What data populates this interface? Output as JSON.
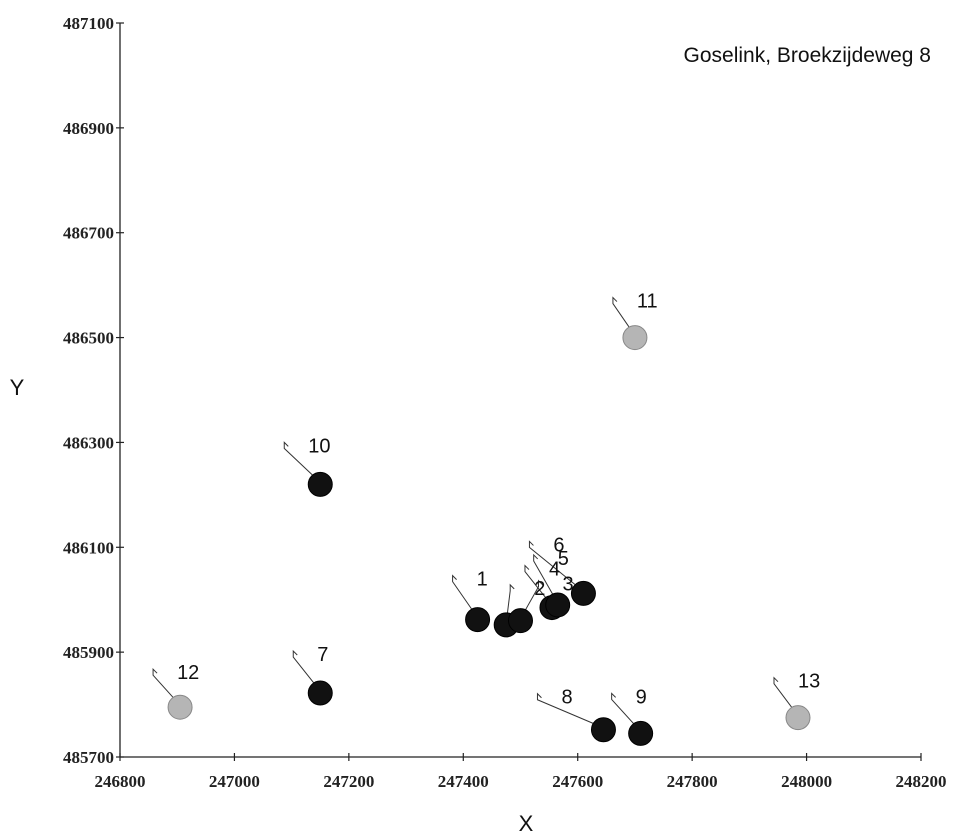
{
  "chart_data": {
    "type": "scatter",
    "title": "Goselink, Broekzijdeweg 8",
    "xlabel": "X",
    "ylabel": "Y",
    "xlim": [
      246800,
      248200
    ],
    "ylim": [
      485700,
      487100
    ],
    "xticks": [
      "246800",
      "247000",
      "247200",
      "247400",
      "247600",
      "247800",
      "248000",
      "248200"
    ],
    "yticks": [
      "487100",
      "486900",
      "486700",
      "486500",
      "486300",
      "486100",
      "485900",
      "485700"
    ],
    "grid": false,
    "colors": {
      "dark": "#111111",
      "light": "#b5b5b5"
    },
    "points": [
      {
        "label": "1",
        "x": 247425,
        "y": 485962,
        "color": "dark"
      },
      {
        "label": "2",
        "x": 247475,
        "y": 485952,
        "color": "dark"
      },
      {
        "label": "3",
        "x": 247500,
        "y": 485960,
        "color": "dark"
      },
      {
        "label": "4",
        "x": 247555,
        "y": 485985,
        "color": "dark"
      },
      {
        "label": "5",
        "x": 247565,
        "y": 485990,
        "color": "dark"
      },
      {
        "label": "6",
        "x": 247610,
        "y": 486012,
        "color": "dark"
      },
      {
        "label": "7",
        "x": 247150,
        "y": 485822,
        "color": "dark"
      },
      {
        "label": "8",
        "x": 247645,
        "y": 485752,
        "color": "dark"
      },
      {
        "label": "9",
        "x": 247710,
        "y": 485745,
        "color": "dark"
      },
      {
        "label": "10",
        "x": 247150,
        "y": 486220,
        "color": "dark"
      },
      {
        "label": "11",
        "x": 247700,
        "y": 486500,
        "color": "light"
      },
      {
        "label": "12",
        "x": 246905,
        "y": 485795,
        "color": "light"
      },
      {
        "label": "13",
        "x": 247985,
        "y": 485775,
        "color": "light"
      }
    ]
  }
}
